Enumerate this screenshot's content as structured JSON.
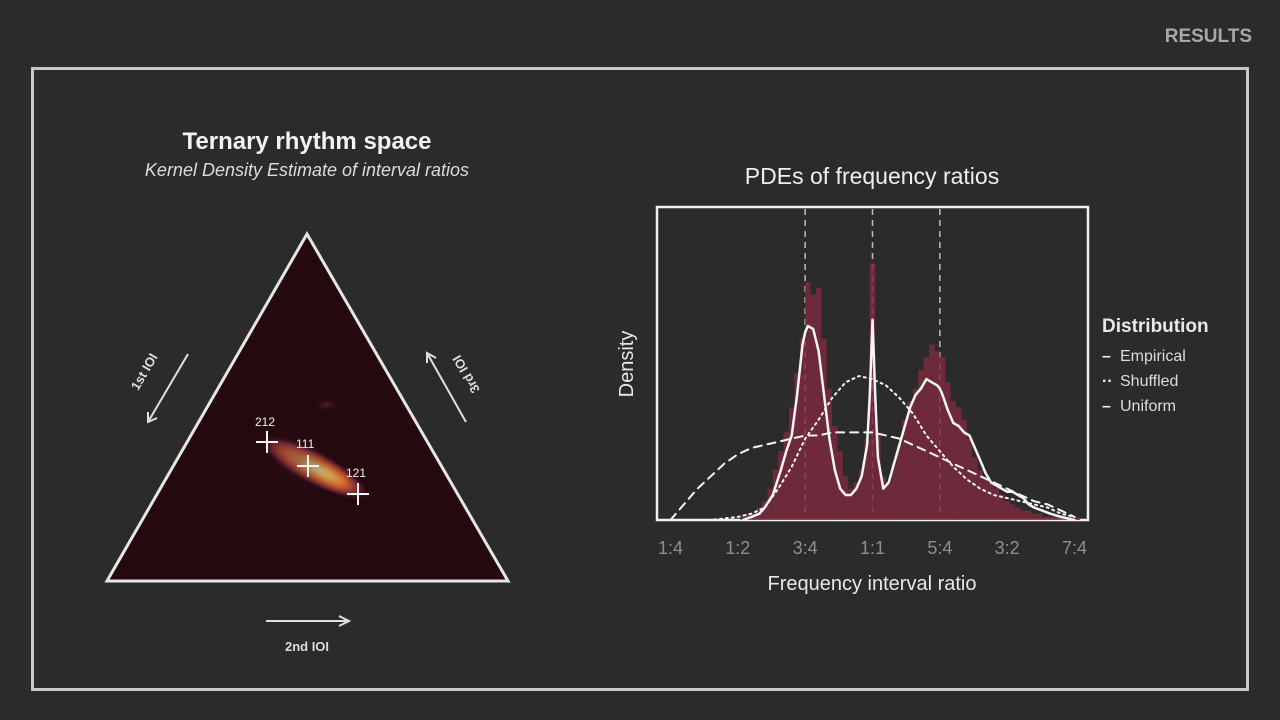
{
  "header": {
    "section_label": "RESULTS"
  },
  "ternary": {
    "title": "Ternary rhythm space",
    "subtitle": "Kernel Density Estimate of interval ratios",
    "axes": {
      "first": "1st IOI",
      "second": "2nd IOI",
      "third": "3rd IOI"
    },
    "points": [
      {
        "label": "212"
      },
      {
        "label": "111"
      },
      {
        "label": "121"
      }
    ]
  },
  "colors": {
    "histogram": "#7a2a3d",
    "kde_bg": "#24090f",
    "accent": "#f3c85a"
  },
  "chart_data": {
    "type": "area",
    "title": "PDEs of frequency ratios",
    "xlabel": "Frequency interval ratio",
    "ylabel": "Density",
    "x_tick_labels": [
      "1:4",
      "1:2",
      "3:4",
      "1:1",
      "5:4",
      "3:2",
      "7:4"
    ],
    "x_ticks": [
      0.25,
      0.5,
      0.75,
      1.0,
      1.25,
      1.5,
      1.75
    ],
    "xlim": [
      0.2,
      1.8
    ],
    "ylim": [
      0,
      1.0
    ],
    "reference_lines": [
      0.75,
      1.0,
      1.25
    ],
    "legend": {
      "title": "Distribution",
      "placement": "right"
    },
    "histogram": {
      "bin_centers": [
        0.52,
        0.54,
        0.56,
        0.58,
        0.6,
        0.62,
        0.64,
        0.66,
        0.68,
        0.7,
        0.72,
        0.74,
        0.76,
        0.78,
        0.8,
        0.82,
        0.84,
        0.86,
        0.88,
        0.9,
        0.92,
        0.94,
        0.96,
        0.98,
        1.0,
        1.02,
        1.04,
        1.06,
        1.08,
        1.1,
        1.12,
        1.14,
        1.16,
        1.18,
        1.2,
        1.22,
        1.24,
        1.26,
        1.28,
        1.3,
        1.32,
        1.34,
        1.36,
        1.38,
        1.4,
        1.42,
        1.44,
        1.46,
        1.48,
        1.5,
        1.52,
        1.54,
        1.56,
        1.58,
        1.6,
        1.62,
        1.64,
        1.66,
        1.68,
        1.7,
        1.72,
        1.74,
        1.76
      ],
      "values": [
        0.01,
        0.02,
        0.02,
        0.04,
        0.06,
        0.1,
        0.16,
        0.22,
        0.28,
        0.36,
        0.47,
        0.58,
        0.76,
        0.72,
        0.74,
        0.58,
        0.42,
        0.3,
        0.22,
        0.14,
        0.1,
        0.12,
        0.16,
        0.26,
        0.82,
        0.28,
        0.14,
        0.12,
        0.18,
        0.24,
        0.32,
        0.38,
        0.42,
        0.48,
        0.52,
        0.56,
        0.54,
        0.52,
        0.44,
        0.38,
        0.36,
        0.32,
        0.26,
        0.2,
        0.16,
        0.13,
        0.12,
        0.1,
        0.08,
        0.06,
        0.05,
        0.04,
        0.03,
        0.03,
        0.02,
        0.02,
        0.01,
        0.01,
        0.01,
        0.01,
        0.01,
        0.01,
        0.01
      ]
    },
    "series": [
      {
        "name": "Empirical",
        "x": [
          0.52,
          0.55,
          0.58,
          0.6,
          0.63,
          0.66,
          0.68,
          0.7,
          0.72,
          0.74,
          0.75,
          0.76,
          0.78,
          0.8,
          0.82,
          0.84,
          0.86,
          0.88,
          0.9,
          0.92,
          0.94,
          0.96,
          0.98,
          0.99,
          1.0,
          1.01,
          1.02,
          1.04,
          1.06,
          1.08,
          1.1,
          1.12,
          1.14,
          1.16,
          1.18,
          1.2,
          1.22,
          1.24,
          1.25,
          1.26,
          1.28,
          1.3,
          1.32,
          1.34,
          1.36,
          1.38,
          1.4,
          1.42,
          1.44,
          1.46,
          1.48,
          1.5,
          1.52,
          1.54,
          1.56,
          1.58,
          1.6,
          1.63,
          1.66,
          1.7,
          1.75
        ],
        "y": [
          0.0,
          0.01,
          0.02,
          0.04,
          0.08,
          0.16,
          0.22,
          0.27,
          0.4,
          0.56,
          0.6,
          0.62,
          0.61,
          0.54,
          0.4,
          0.26,
          0.16,
          0.1,
          0.08,
          0.08,
          0.1,
          0.14,
          0.24,
          0.4,
          0.64,
          0.4,
          0.2,
          0.1,
          0.12,
          0.18,
          0.24,
          0.3,
          0.36,
          0.4,
          0.42,
          0.45,
          0.44,
          0.43,
          0.42,
          0.4,
          0.35,
          0.31,
          0.3,
          0.28,
          0.27,
          0.23,
          0.19,
          0.15,
          0.12,
          0.11,
          0.1,
          0.09,
          0.09,
          0.08,
          0.07,
          0.05,
          0.04,
          0.03,
          0.02,
          0.01,
          0.0
        ]
      },
      {
        "name": "Shuffled",
        "x": [
          0.3,
          0.4,
          0.5,
          0.55,
          0.6,
          0.65,
          0.7,
          0.75,
          0.8,
          0.85,
          0.9,
          0.95,
          1.0,
          1.05,
          1.1,
          1.15,
          1.2,
          1.25,
          1.3,
          1.35,
          1.4,
          1.45,
          1.5,
          1.55,
          1.6,
          1.65,
          1.7,
          1.75
        ],
        "y": [
          0.0,
          0.0,
          0.01,
          0.02,
          0.04,
          0.1,
          0.17,
          0.26,
          0.32,
          0.39,
          0.44,
          0.46,
          0.45,
          0.43,
          0.39,
          0.34,
          0.27,
          0.22,
          0.17,
          0.13,
          0.1,
          0.08,
          0.07,
          0.06,
          0.05,
          0.04,
          0.02,
          0.01
        ]
      },
      {
        "name": "Uniform",
        "x": [
          0.25,
          0.3,
          0.35,
          0.4,
          0.45,
          0.5,
          0.55,
          0.6,
          0.65,
          0.7,
          0.75,
          0.8,
          0.85,
          0.9,
          0.95,
          1.0,
          1.05,
          1.1,
          1.15,
          1.2,
          1.25,
          1.3,
          1.35,
          1.4,
          1.45,
          1.5,
          1.55,
          1.6,
          1.65,
          1.7,
          1.75
        ],
        "y": [
          0.0,
          0.05,
          0.1,
          0.14,
          0.18,
          0.21,
          0.23,
          0.24,
          0.25,
          0.26,
          0.27,
          0.27,
          0.28,
          0.28,
          0.28,
          0.28,
          0.27,
          0.26,
          0.24,
          0.22,
          0.2,
          0.18,
          0.16,
          0.14,
          0.12,
          0.1,
          0.08,
          0.06,
          0.05,
          0.03,
          0.01
        ]
      }
    ]
  }
}
